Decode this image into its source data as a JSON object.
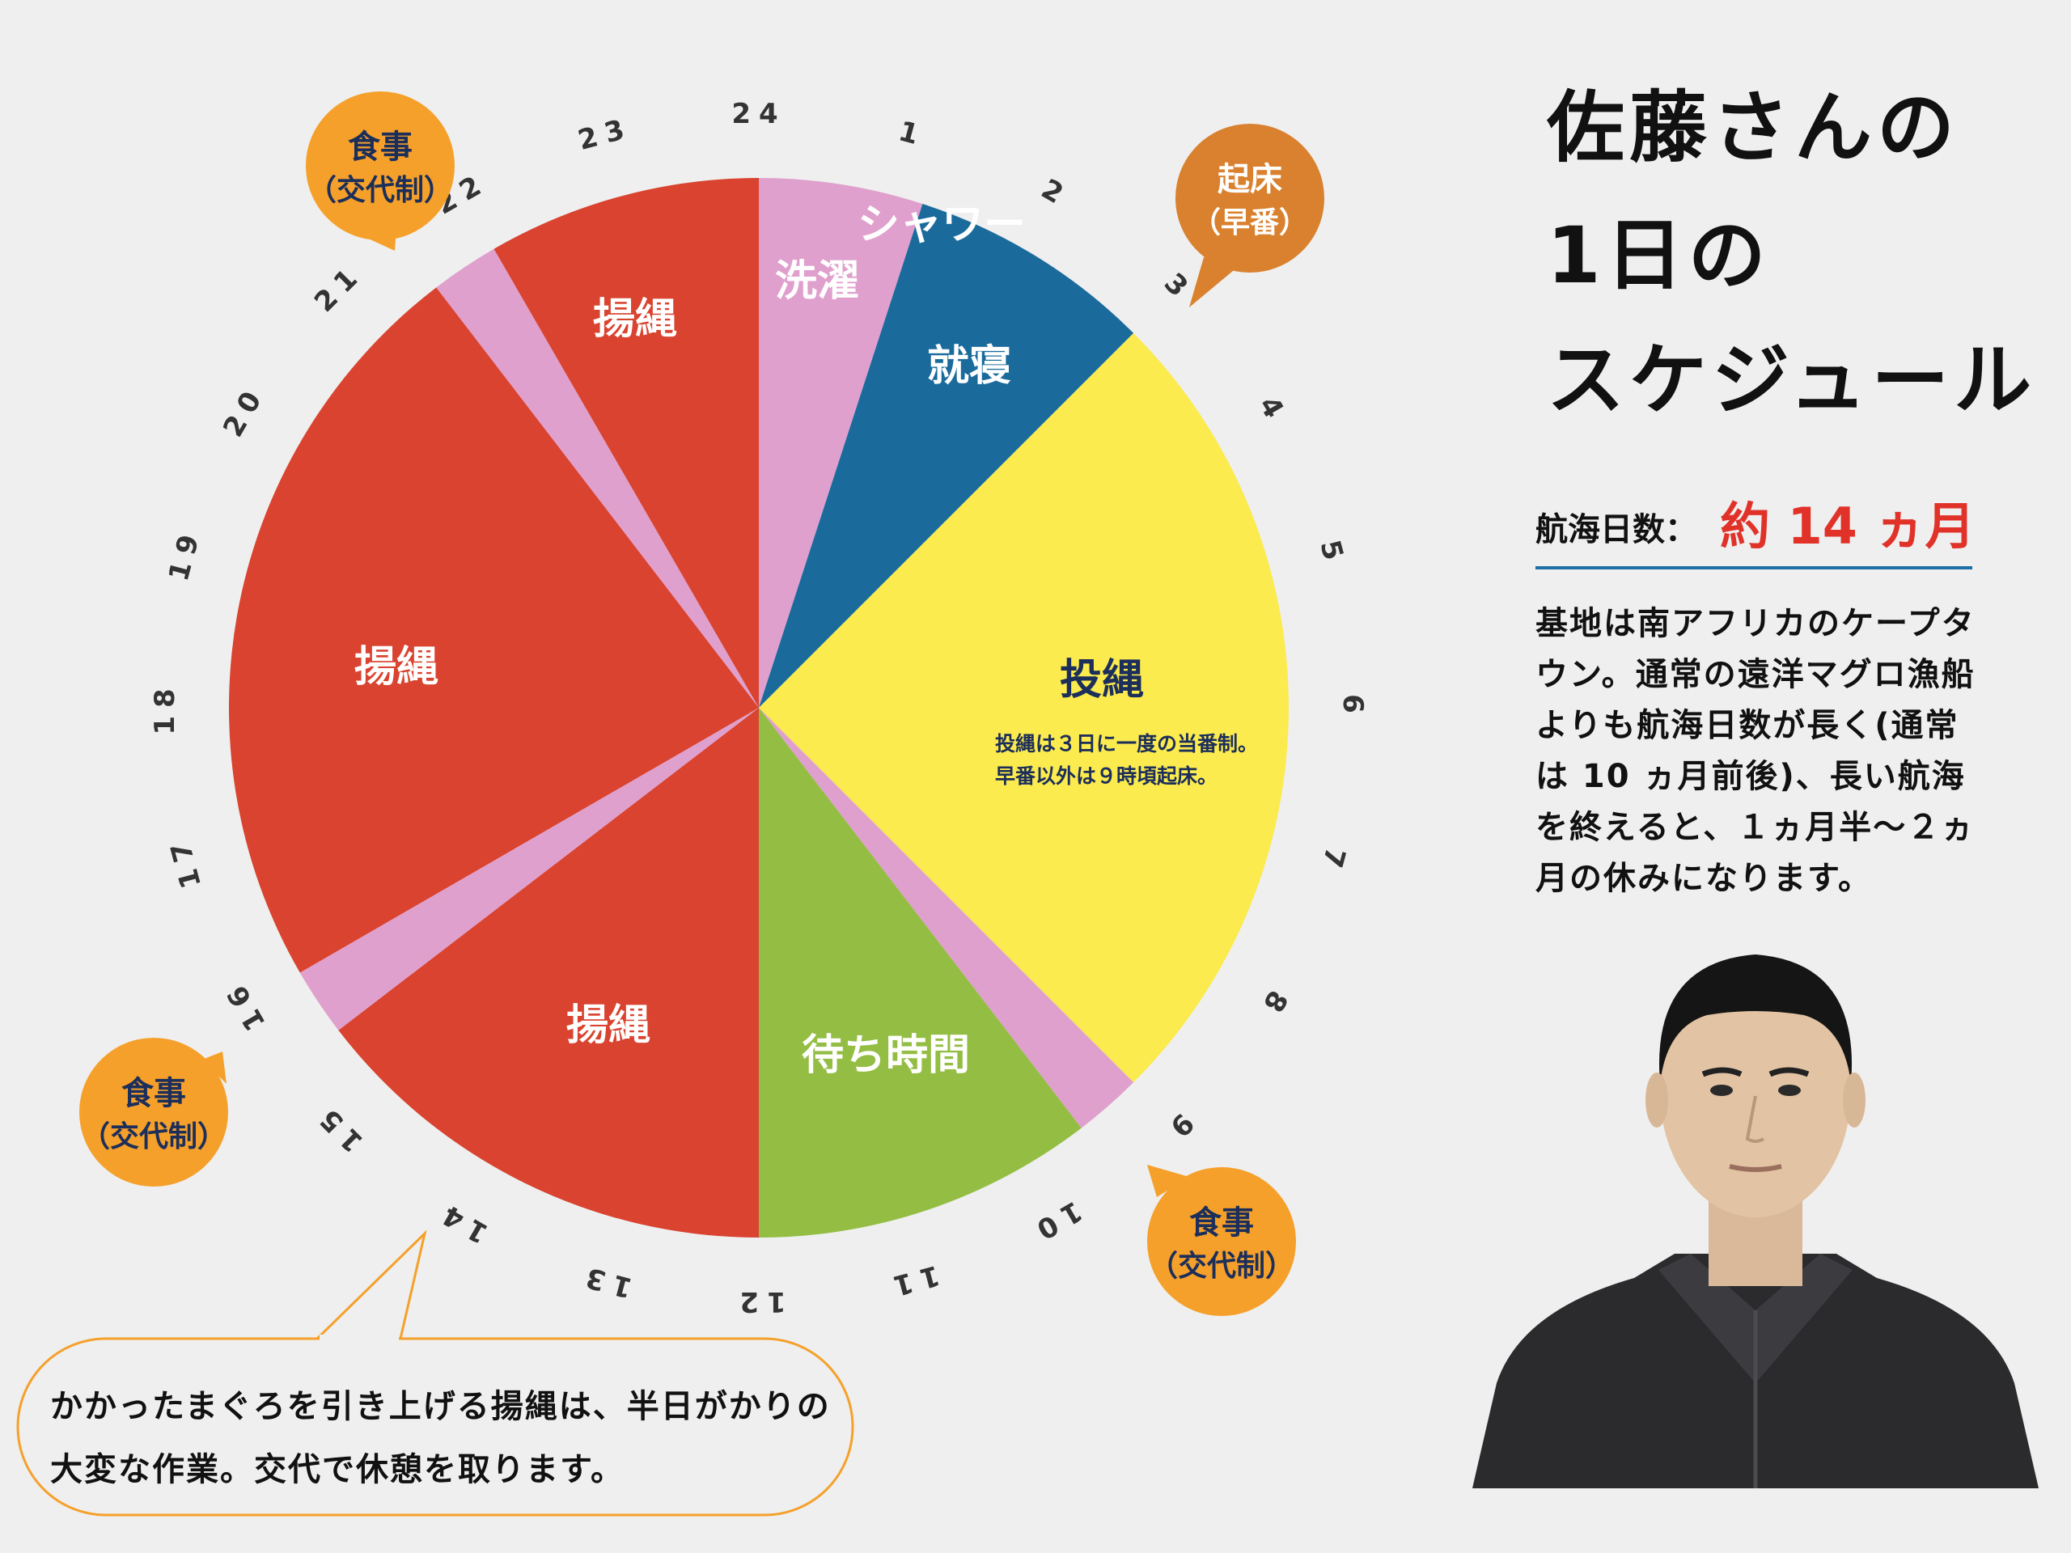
{
  "title_lines": [
    "佐藤さんの",
    "1日の",
    "スケジュール"
  ],
  "voyage": {
    "label": "航海日数：",
    "value": "約 14 ヵ月"
  },
  "description": "基地は南アフリカのケープタウン。通常の遠洋マグロ漁船よりも航海日数が長く(通常は 10 ヵ月前後)、長い航海を終えると、１ヵ月半〜２ヵ月の休みになります。",
  "bottom_note": "かかったまぐろを引き上げる揚縄は、半日がかりの大変な作業。交代で休憩を取ります。",
  "colors": {
    "haul": "#d9432f",
    "pink": "#e0a0cd",
    "sleep": "#1a6b9c",
    "set": "#fbeb4e",
    "wait": "#93be43",
    "orange": "#f5a02a",
    "wake_orange": "#d9812e",
    "navy": "#1c2e5a"
  },
  "chart_data": {
    "type": "pie",
    "title": "",
    "unit": "hour",
    "clock_labels": [
      "1",
      "2",
      "3",
      "4",
      "5",
      "6",
      "7",
      "8",
      "9",
      "10",
      "11",
      "12",
      "13",
      "14",
      "15",
      "16",
      "17",
      "18",
      "19",
      "20",
      "21",
      "22",
      "23",
      "24"
    ],
    "segments": [
      {
        "label": "シャワー\n洗濯",
        "start": 0,
        "end": 1.2,
        "color": "#e0a0cd",
        "label_color": "#ffffff"
      },
      {
        "label": "就寝",
        "start": 1.2,
        "end": 3,
        "color": "#1a6b9c",
        "label_color": "#ffffff"
      },
      {
        "label": "投縄",
        "start": 3,
        "end": 9,
        "color": "#fbeb4e",
        "label_color": "#1c2e5a",
        "note": [
          "投縄は３日に一度の当番制。",
          "早番以外は９時頃起床。"
        ]
      },
      {
        "label": "",
        "start": 9,
        "end": 9.5,
        "color": "#e0a0cd"
      },
      {
        "label": "待ち時間",
        "start": 9.5,
        "end": 12,
        "color": "#93be43",
        "label_color": "#ffffff"
      },
      {
        "label": "揚縄",
        "start": 12,
        "end": 15.5,
        "color": "#d9432f",
        "label_color": "#ffffff"
      },
      {
        "label": "",
        "start": 15.5,
        "end": 16,
        "color": "#e0a0cd"
      },
      {
        "label": "揚縄",
        "start": 16,
        "end": 21.5,
        "color": "#d9432f",
        "label_color": "#ffffff"
      },
      {
        "label": "",
        "start": 21.5,
        "end": 22,
        "color": "#e0a0cd"
      },
      {
        "label": "揚縄",
        "start": 22,
        "end": 24,
        "color": "#d9432f",
        "label_color": "#ffffff"
      }
    ],
    "callouts": [
      {
        "lines": [
          "起床",
          "（早番）"
        ],
        "hour": 3,
        "color": "#d9812e",
        "text_color": "#ffffff"
      },
      {
        "lines": [
          "食事",
          "（交代制）"
        ],
        "hour": 9,
        "color": "#f5a02a",
        "text_color": "#1c2e5a"
      },
      {
        "lines": [
          "食事",
          "（交代制）"
        ],
        "hour": 15.5,
        "color": "#f5a02a",
        "text_color": "#1c2e5a"
      },
      {
        "lines": [
          "食事",
          "（交代制）"
        ],
        "hour": 21.5,
        "color": "#f5a02a",
        "text_color": "#1c2e5a"
      }
    ]
  }
}
